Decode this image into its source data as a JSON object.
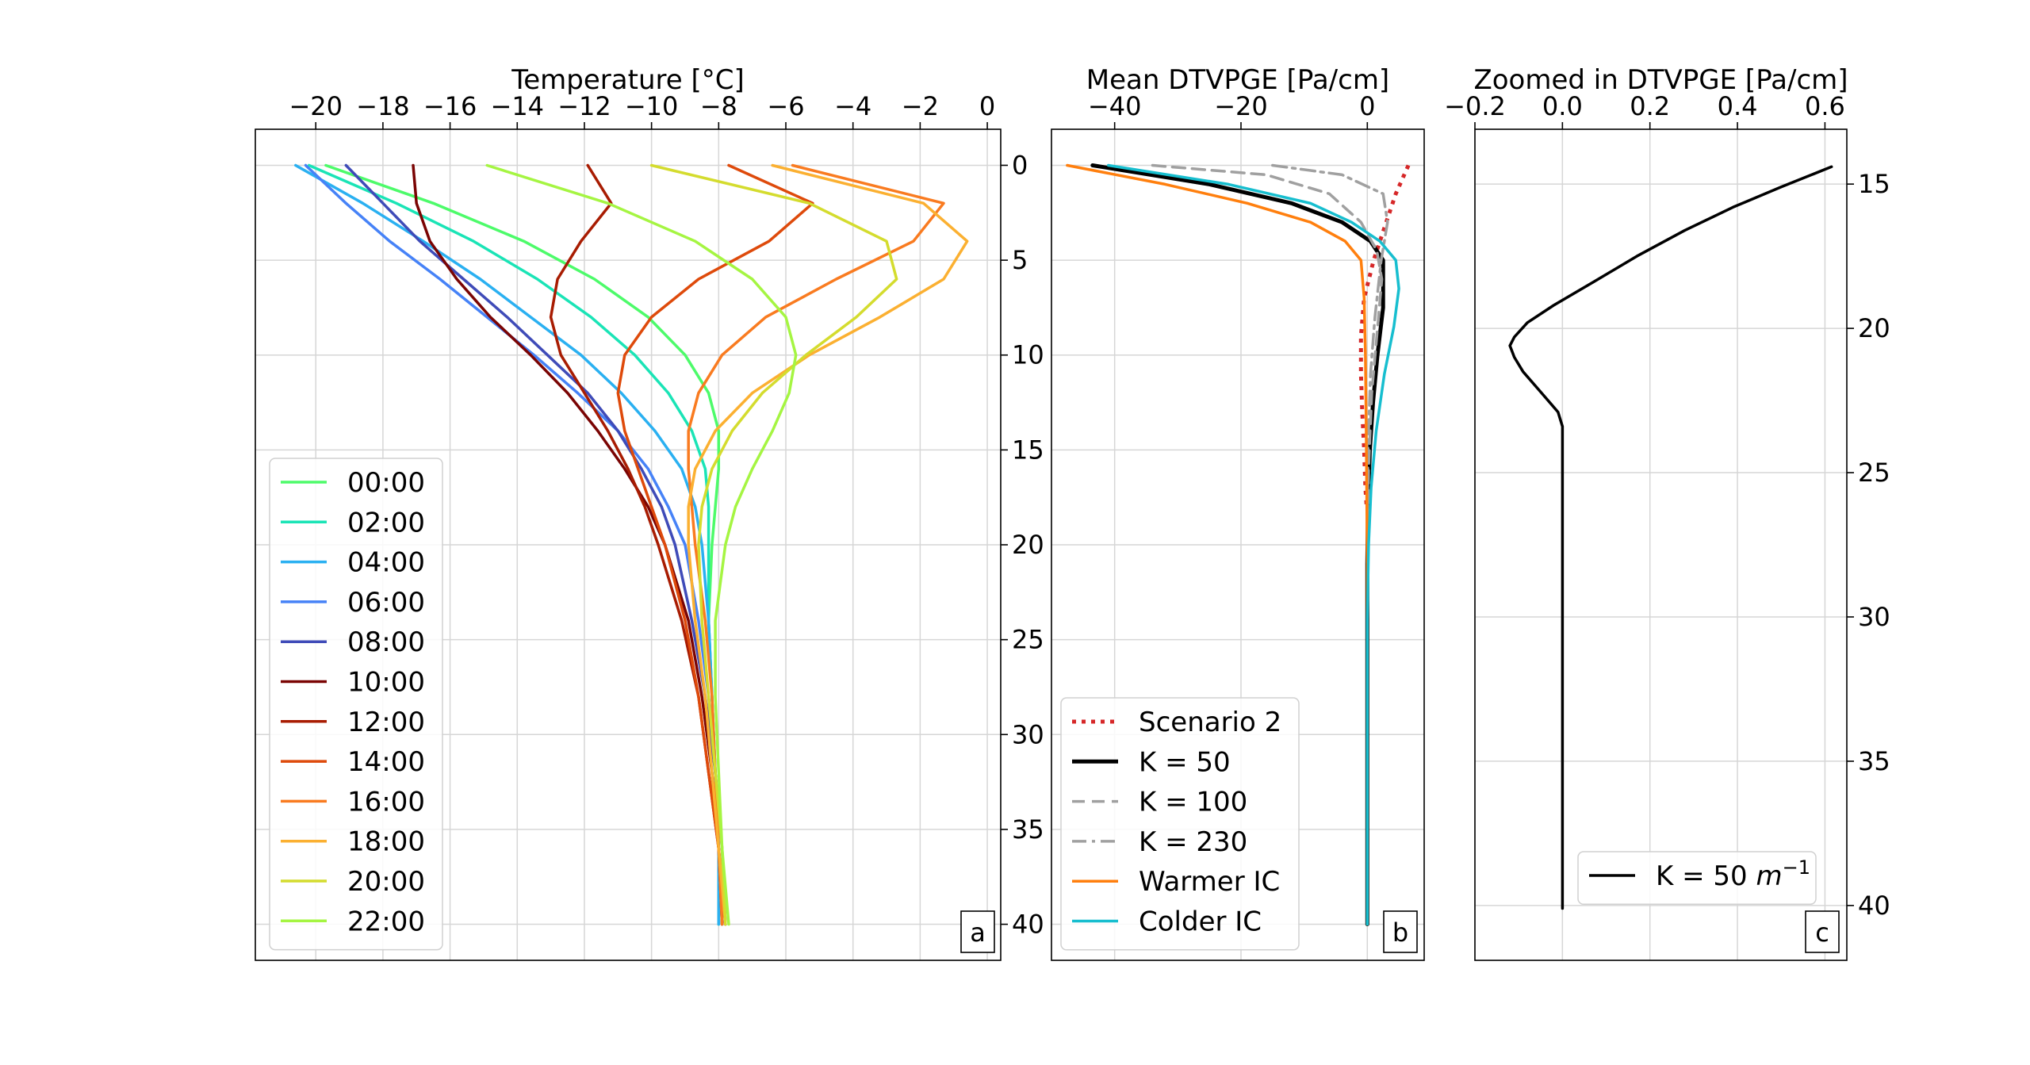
{
  "figure": {
    "panels": [
      "a",
      "b",
      "c"
    ]
  },
  "chart_data": [
    {
      "type": "line",
      "panel_letter": "a",
      "title": "Temperature [°C]",
      "xlabel": "Temperature [°C]",
      "ylabel": "",
      "xlim": [
        -21.8,
        0.4
      ],
      "ylim": [
        41.9,
        -1.9
      ],
      "xticks": [
        -20,
        -18,
        -16,
        -14,
        -12,
        -10,
        -8,
        -6,
        -4,
        -2,
        0
      ],
      "yticks": [
        0,
        5,
        10,
        15,
        20,
        25,
        30,
        35,
        40
      ],
      "x_axis_position": "top",
      "y_axis_position": "right",
      "grid": true,
      "legend_position": "lower-left",
      "series": [
        {
          "name": "00:00",
          "color": "#4dfb6a",
          "x": [
            -19.7,
            -16.5,
            -13.8,
            -11.7,
            -10.1,
            -9.0,
            -8.3,
            -8.0,
            -8.0,
            -8.1,
            -8.2,
            -8.3,
            -8.2,
            -8.1,
            -8.0,
            -8.0
          ],
          "y": [
            0,
            2,
            4,
            6,
            8,
            10,
            12,
            14,
            16,
            18,
            20,
            24,
            28,
            32,
            36,
            40
          ]
        },
        {
          "name": "02:00",
          "color": "#1ae4b6",
          "x": [
            -20.2,
            -17.6,
            -15.3,
            -13.4,
            -11.8,
            -10.5,
            -9.5,
            -8.8,
            -8.4,
            -8.3,
            -8.3,
            -8.3,
            -8.2,
            -8.1,
            -8.0,
            -8.0
          ],
          "y": [
            0,
            2,
            4,
            6,
            8,
            10,
            12,
            14,
            16,
            18,
            20,
            24,
            28,
            32,
            36,
            40
          ]
        },
        {
          "name": "04:00",
          "color": "#2ab0f1",
          "x": [
            -20.6,
            -18.6,
            -16.8,
            -15.1,
            -13.6,
            -12.1,
            -10.9,
            -9.9,
            -9.1,
            -8.7,
            -8.5,
            -8.3,
            -8.2,
            -8.1,
            -8.0,
            -8.0
          ],
          "y": [
            0,
            2,
            4,
            6,
            8,
            10,
            12,
            14,
            16,
            18,
            20,
            24,
            28,
            32,
            36,
            40
          ]
        },
        {
          "name": "06:00",
          "color": "#4682f7",
          "x": [
            -20.3,
            -19.1,
            -17.8,
            -16.3,
            -14.9,
            -13.5,
            -12.2,
            -11.0,
            -10.1,
            -9.5,
            -9.0,
            -8.6,
            -8.3,
            -8.1,
            -8.0,
            -7.9
          ],
          "y": [
            0,
            2,
            4,
            6,
            8,
            10,
            12,
            14,
            16,
            18,
            20,
            24,
            28,
            32,
            36,
            40
          ]
        },
        {
          "name": "08:00",
          "color": "#3f4bb8",
          "x": [
            -19.1,
            -18.0,
            -16.9,
            -15.6,
            -14.3,
            -13.1,
            -11.9,
            -11.0,
            -10.3,
            -9.7,
            -9.3,
            -8.8,
            -8.4,
            -8.1,
            -7.9,
            -7.8
          ],
          "y": [
            0,
            2,
            4,
            6,
            8,
            10,
            12,
            14,
            16,
            18,
            20,
            24,
            28,
            32,
            36,
            40
          ]
        },
        {
          "name": "10:00",
          "color": "#7a0403",
          "x": [
            -17.1,
            -17.0,
            -16.6,
            -15.8,
            -14.8,
            -13.6,
            -12.5,
            -11.6,
            -10.8,
            -10.1,
            -9.6,
            -8.9,
            -8.5,
            -8.2,
            -8.0,
            -7.9
          ],
          "y": [
            0,
            2,
            4,
            6,
            8,
            10,
            12,
            14,
            16,
            18,
            20,
            24,
            28,
            32,
            36,
            40
          ]
        },
        {
          "name": "12:00",
          "color": "#a81c02",
          "x": [
            -11.9,
            -11.2,
            -12.1,
            -12.8,
            -13.0,
            -12.7,
            -12.0,
            -11.3,
            -10.7,
            -10.2,
            -9.8,
            -9.1,
            -8.6,
            -8.3,
            -8.0,
            -7.8
          ],
          "y": [
            0,
            2,
            4,
            6,
            8,
            10,
            12,
            14,
            16,
            18,
            20,
            24,
            28,
            32,
            36,
            40
          ]
        },
        {
          "name": "14:00",
          "color": "#de4a0b",
          "x": [
            -7.7,
            -5.2,
            -6.5,
            -8.6,
            -10.0,
            -10.8,
            -11.0,
            -10.8,
            -10.4,
            -10.0,
            -9.6,
            -9.0,
            -8.6,
            -8.3,
            -8.0,
            -7.8
          ],
          "y": [
            0,
            2,
            4,
            6,
            8,
            10,
            12,
            14,
            16,
            18,
            20,
            24,
            28,
            32,
            36,
            40
          ]
        },
        {
          "name": "16:00",
          "color": "#f97b20",
          "x": [
            -5.8,
            -1.3,
            -2.2,
            -4.5,
            -6.6,
            -7.9,
            -8.6,
            -8.9,
            -8.9,
            -8.8,
            -8.7,
            -8.4,
            -8.2,
            -8.1,
            -8.0,
            -7.9
          ],
          "y": [
            0,
            2,
            4,
            6,
            8,
            10,
            12,
            14,
            16,
            18,
            20,
            24,
            28,
            32,
            36,
            40
          ]
        },
        {
          "name": "18:00",
          "color": "#fbb031",
          "x": [
            -6.4,
            -1.9,
            -0.6,
            -1.3,
            -3.2,
            -5.3,
            -7.0,
            -8.1,
            -8.7,
            -8.9,
            -8.9,
            -8.7,
            -8.4,
            -8.2,
            -8.0,
            -7.8
          ],
          "y": [
            0,
            2,
            4,
            6,
            8,
            10,
            12,
            14,
            16,
            18,
            20,
            24,
            28,
            32,
            36,
            40
          ]
        },
        {
          "name": "20:00",
          "color": "#d4dc2e",
          "x": [
            -10.0,
            -5.3,
            -3.0,
            -2.7,
            -3.9,
            -5.4,
            -6.7,
            -7.6,
            -8.2,
            -8.5,
            -8.6,
            -8.5,
            -8.3,
            -8.1,
            -7.9,
            -7.8
          ],
          "y": [
            0,
            2,
            4,
            6,
            8,
            10,
            12,
            14,
            16,
            18,
            20,
            24,
            28,
            32,
            36,
            40
          ]
        },
        {
          "name": "22:00",
          "color": "#a5f542",
          "x": [
            -14.9,
            -11.3,
            -8.7,
            -7.0,
            -6.0,
            -5.7,
            -5.9,
            -6.4,
            -7.0,
            -7.5,
            -7.8,
            -8.1,
            -8.1,
            -8.0,
            -7.9,
            -7.7
          ],
          "y": [
            0,
            2,
            4,
            6,
            8,
            10,
            12,
            14,
            16,
            18,
            20,
            24,
            28,
            32,
            36,
            40
          ]
        }
      ]
    },
    {
      "type": "line",
      "panel_letter": "b",
      "title": "Mean DTVPGE [Pa/cm]",
      "xlabel": "Mean DTVPGE [Pa/cm]",
      "ylabel": "",
      "xlim": [
        -50,
        9
      ],
      "ylim": [
        41.9,
        -1.9
      ],
      "xticks": [
        -40,
        -20,
        0
      ],
      "x_axis_position": "top",
      "grid": true,
      "legend_position": "lower-left",
      "series": [
        {
          "name": "Scenario 2",
          "color": "#d62728",
          "dash": "dotted",
          "width": 5,
          "x": [
            6.5,
            4.5,
            3.0,
            1.0,
            -0.5,
            -1.0,
            -1.0,
            -0.8,
            -0.5,
            -0.3,
            -0.1
          ],
          "y": [
            0,
            1.5,
            3,
            5,
            7,
            9,
            11,
            13,
            15,
            17,
            18
          ]
        },
        {
          "name": "K = 50",
          "color": "#000000",
          "dash": "solid",
          "width": 5,
          "x": [
            -43.5,
            -25,
            -12,
            -4.0,
            0.5,
            2.5,
            2.5,
            1.6,
            0.9,
            0.4,
            0.1,
            0.0,
            0.0
          ],
          "y": [
            0,
            1,
            2,
            3,
            4,
            5,
            7.5,
            10,
            12.5,
            15,
            18,
            21,
            40
          ]
        },
        {
          "name": "K = 100",
          "color": "#a0a0a0",
          "dash": "dashed",
          "width": 3.5,
          "x": [
            -34,
            -16,
            -6,
            -1,
            1.5,
            2.3,
            1.5,
            0.7,
            0.2,
            0.0
          ],
          "y": [
            0,
            0.5,
            1.5,
            3,
            4.5,
            6,
            9,
            12,
            16,
            21
          ]
        },
        {
          "name": "K = 230",
          "color": "#a0a0a0",
          "dash": "dashdot",
          "width": 3.5,
          "x": [
            -15,
            -4,
            2.5,
            3.2,
            2.2,
            1.2,
            0.5,
            0.1,
            0.0
          ],
          "y": [
            0,
            0.5,
            1.5,
            3,
            5,
            8,
            11,
            15,
            20
          ]
        },
        {
          "name": "Warmer IC",
          "color": "#ff7f0e",
          "dash": "solid",
          "width": 3.5,
          "x": [
            -47.5,
            -32,
            -19,
            -9,
            -3.5,
            -1.0,
            -0.5,
            -0.3,
            -0.2,
            -0.1,
            0.0,
            0.0
          ],
          "y": [
            0,
            1,
            2,
            3,
            4,
            5,
            7,
            10,
            13,
            17,
            21,
            40
          ]
        },
        {
          "name": "Colder IC",
          "color": "#17becf",
          "dash": "solid",
          "width": 3.5,
          "x": [
            -41,
            -22,
            -9,
            -2.5,
            2.0,
            4.5,
            5.0,
            4.2,
            2.7,
            1.4,
            0.6,
            0.2,
            0.0,
            0.0
          ],
          "y": [
            0,
            1,
            2,
            3,
            4,
            5,
            6.5,
            8.5,
            11,
            14,
            17,
            20,
            24,
            40
          ]
        }
      ]
    },
    {
      "type": "line",
      "panel_letter": "c",
      "title": "Zoomed in DTVPGE [Pa/cm]",
      "xlabel": "Zoomed in DTVPGE [Pa/cm]",
      "ylabel": "",
      "xlim": [
        -0.2,
        0.65
      ],
      "ylim": [
        41.9,
        13.1
      ],
      "xticks": [
        -0.2,
        0.0,
        0.2,
        0.4,
        0.6
      ],
      "yticks": [
        15,
        20,
        25,
        30,
        35,
        40
      ],
      "x_axis_position": "top",
      "y_axis_position": "right",
      "grid": true,
      "legend_position": "lower-right",
      "series": [
        {
          "name": "K = 50 m^-1",
          "color": "#000000",
          "x": [
            0.615,
            0.5,
            0.39,
            0.28,
            0.17,
            0.07,
            -0.02,
            -0.08,
            -0.11,
            -0.12,
            -0.11,
            -0.09,
            -0.05,
            -0.01,
            0.0,
            0.0,
            0.0
          ],
          "y": [
            14.4,
            15.1,
            15.8,
            16.6,
            17.5,
            18.4,
            19.2,
            19.8,
            20.3,
            20.6,
            21.0,
            21.5,
            22.2,
            22.9,
            23.4,
            30.0,
            40.1
          ]
        }
      ]
    }
  ]
}
